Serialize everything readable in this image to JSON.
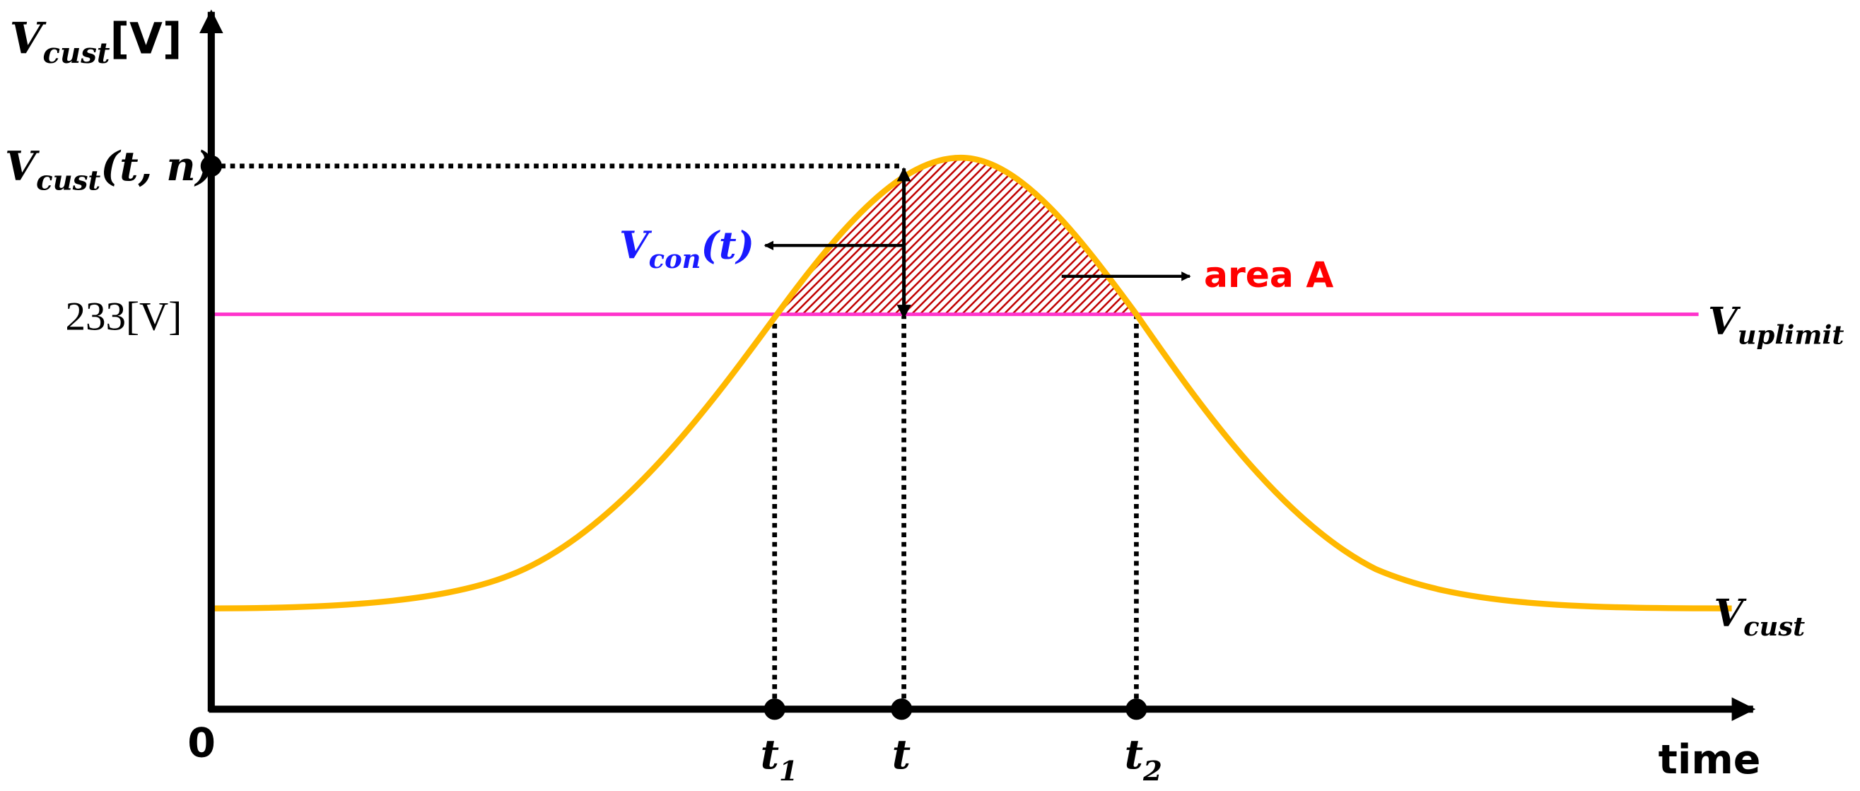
{
  "y_axis_label": {
    "base": "V",
    "sub": "cust",
    "unit": "[V]"
  },
  "peak_label": {
    "base": "V",
    "sub": "cust",
    "args": "(t, n)"
  },
  "limit_value_label": "233[V]",
  "control_label": {
    "base": "V",
    "sub": "con",
    "args": "(t)"
  },
  "area_label": "area A",
  "limit_line_label": {
    "base": "V",
    "sub": "uplimit"
  },
  "curve_label": {
    "base": "V",
    "sub": "cust"
  },
  "origin_label": "0",
  "x_points": [
    {
      "base": "t",
      "sub": "1"
    },
    {
      "base": "t"
    },
    {
      "base": "t",
      "sub": "2"
    }
  ],
  "x_axis_label": "time"
}
